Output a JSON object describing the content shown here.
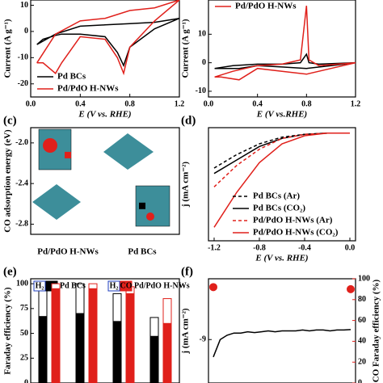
{
  "chart_data": [
    {
      "type": "line",
      "xlabel": "E (V vs. RHE)",
      "ylabel": "Current (A g⁻¹)",
      "xlim": [
        0,
        1.2
      ],
      "xticks": [
        {
          "value": 0,
          "label": "0.0"
        },
        0.4,
        0.8,
        1.2
      ],
      "ylim": [
        -25,
        12
      ],
      "yticks": [
        -20,
        -10,
        0,
        10
      ],
      "legend": "lower left",
      "x": [
        0.05,
        0.2,
        0.4,
        0.6,
        0.8,
        1.0,
        1.2,
        1.0,
        0.8,
        0.75,
        0.7,
        0.6,
        0.4,
        0.25,
        0.2,
        0.1,
        0.05
      ],
      "series": [
        {
          "name": "Pd BCs",
          "color": "#000000",
          "values": [
            -5,
            -1,
            2,
            2.5,
            3,
            3.5,
            5,
            1,
            -6,
            -13,
            -8,
            -2,
            -1,
            -1,
            -1.5,
            -3,
            -5
          ]
        },
        {
          "name": "Pd/PdO H-NWs",
          "color": "#e0201b",
          "values": [
            -12,
            -1,
            4,
            5,
            8,
            9,
            12,
            4,
            -6,
            -16,
            -10,
            -3,
            -2,
            -12,
            -16,
            -12,
            -12
          ]
        }
      ]
    },
    {
      "type": "line",
      "xlabel": "E (V vs.RHE)",
      "ylabel": "Current (A g⁻¹)",
      "xlim": [
        0,
        1.2
      ],
      "xticks": [
        {
          "value": 0,
          "label": "0.0"
        },
        0.4,
        0.8,
        1.2
      ],
      "ylim": [
        -12,
        22
      ],
      "yticks": [
        -10,
        0,
        10
      ],
      "legend": "upper right",
      "x": [
        0.05,
        0.2,
        0.4,
        0.6,
        0.75,
        0.8,
        0.82,
        0.9,
        1.2,
        1.0,
        0.8,
        0.6,
        0.4,
        0.25,
        0.1,
        0.05
      ],
      "series": [
        {
          "color": "#000000",
          "values": [
            -2,
            -1,
            -0.5,
            -0.5,
            0,
            3,
            0,
            -0.5,
            0,
            -1,
            -2,
            -1.5,
            -1,
            -2,
            -2,
            -2
          ]
        },
        {
          "name": "Pd/PdO H-NWs",
          "color": "#e0201b",
          "values": [
            -5,
            -3,
            -1,
            -0.5,
            1,
            20,
            1,
            -1,
            0,
            -2,
            -4,
            -3,
            -2,
            -6,
            -5,
            -5
          ]
        }
      ]
    },
    {
      "type": "scatter",
      "panel": "(c)",
      "ylabel": "CO adsorption energy (eV)",
      "ylim": [
        -2.9,
        -1.85
      ],
      "yticks": [
        {
          "value": -2,
          "label": "-2.0"
        },
        -2.4,
        -2.8
      ],
      "categories": [
        "Pd/PdO H-NWs",
        "Pd BCs"
      ],
      "values": [
        -2.12,
        -2.62
      ],
      "colors": [
        "#e0201b",
        "#000000"
      ]
    },
    {
      "type": "line",
      "panel": "(d)",
      "xlabel": "E (V vs. RHE)",
      "ylabel": "j (mA cm⁻²)",
      "xlim": [
        -1.25,
        0.05
      ],
      "xticks": [
        -1.2,
        -0.8,
        -0.4,
        {
          "value": 0,
          "label": "0.0"
        }
      ],
      "ylim": [
        -40,
        2
      ],
      "legend": "lower right",
      "x": [
        -1.2,
        -1.0,
        -0.8,
        -0.6,
        -0.4,
        -0.2,
        0
      ],
      "series": [
        {
          "name": "Pd BCs (Ar)",
          "color": "#000000",
          "dash": true,
          "values": [
            -13,
            -8,
            -4,
            -1.5,
            -0.5,
            0,
            0
          ]
        },
        {
          "name": "Pd BCs (CO₂)",
          "color": "#000000",
          "values": [
            -15,
            -10,
            -5,
            -2,
            -0.5,
            0,
            0
          ]
        },
        {
          "name": "Pd/PdO H-NWs (Ar)",
          "color": "#e0201b",
          "dash": true,
          "values": [
            -20,
            -12,
            -6,
            -2,
            -0.5,
            0,
            0
          ]
        },
        {
          "name": "Pd/PdO H-NWs (CO₂)",
          "color": "#e0201b",
          "values": [
            -35,
            -22,
            -11,
            -4,
            -1,
            0,
            0
          ]
        }
      ]
    },
    {
      "type": "bar",
      "panel": "(e)",
      "ylabel": "Faraday efficiency (%)",
      "ylim": [
        0,
        105
      ],
      "yticks": [
        0,
        25,
        50,
        75,
        100
      ],
      "groups": [
        {
          "name": "Pd BCs",
          "edge": "#000000",
          "series": [
            {
              "name": "CO",
              "color": "#000000",
              "values": [
                67,
                70,
                62,
                47
              ]
            },
            {
              "name": "H₂",
              "color": "#ffffff",
              "values": [
                33,
                30,
                28,
                19
              ]
            }
          ]
        },
        {
          "name": "Pd/PdO H-NWs",
          "edge": "#e0201b",
          "series": [
            {
              "name": "CO",
              "color": "#e0201b",
              "values": [
                95,
                95,
                90,
                60
              ]
            },
            {
              "name": "H₂",
              "color": "#ffffff",
              "values": [
                5,
                5,
                7,
                25
              ]
            }
          ]
        }
      ]
    },
    {
      "type": "line",
      "panel": "(f)",
      "ylabel": "j (mA cm⁻²)",
      "y2label": "CO Faraday efficiency (%)",
      "ylim": [
        -10,
        -7.6
      ],
      "yticks": [
        -9
      ],
      "y2lim": [
        0,
        100
      ],
      "y2ticks": [
        0,
        20,
        40,
        60,
        80,
        100
      ],
      "series": [
        {
          "color": "#000000",
          "values": [
            -9.4,
            -9.0,
            -8.9,
            -8.85,
            -8.85,
            -8.82,
            -8.84,
            -8.82,
            -8.8,
            -8.82,
            -8.8,
            -8.8,
            -8.8,
            -8.78,
            -8.8,
            -8.78,
            -8.78,
            -8.8,
            -8.78,
            -8.78,
            -8.77
          ]
        },
        {
          "color": "#e0201b",
          "axis": "y2",
          "marker": true,
          "values": [
            92,
            null,
            null,
            null,
            null,
            null,
            null,
            null,
            null,
            null,
            null,
            null,
            null,
            null,
            null,
            null,
            null,
            null,
            null,
            null,
            90
          ]
        }
      ]
    }
  ]
}
